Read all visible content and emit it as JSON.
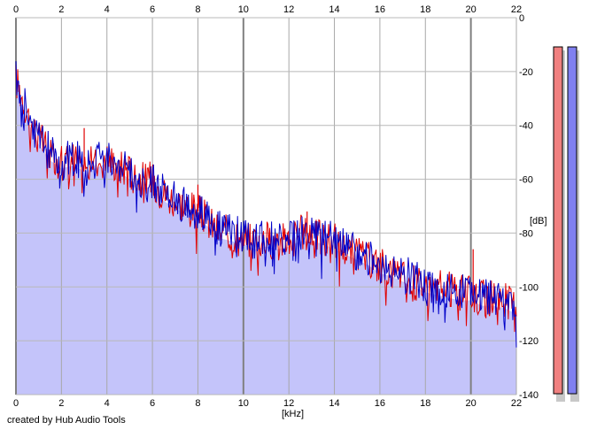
{
  "credit": "created by Hub Audio Tools",
  "chart_data": {
    "type": "line",
    "title": "",
    "xlabel": "[kHz]",
    "ylabel": "[dB]",
    "xlim": [
      0,
      22
    ],
    "ylim": [
      -140,
      0
    ],
    "x_ticks": [
      "0",
      "2",
      "4",
      "6",
      "8",
      "10",
      "12",
      "14",
      "16",
      "18",
      "20",
      "22"
    ],
    "y_ticks": [
      "0",
      "-20",
      "-40",
      "-60",
      "-80",
      "-100",
      "-120",
      "-140"
    ],
    "grid": true,
    "colors": {
      "fill": "#c4c4fa",
      "left_channel": "#e00000",
      "right_channel": "#0000c8",
      "meter_left": "#f08080",
      "meter_right": "#8080f0"
    },
    "series": [
      {
        "color": "#e00000",
        "points": [
          [
            0,
            -23
          ],
          [
            0.3,
            -30
          ],
          [
            0.6,
            -38
          ],
          [
            1,
            -45
          ],
          [
            1.5,
            -50
          ],
          [
            2,
            -54
          ],
          [
            2.5,
            -52
          ],
          [
            3,
            -55
          ],
          [
            3.5,
            -54
          ],
          [
            4,
            -52
          ],
          [
            4.5,
            -55
          ],
          [
            5,
            -57
          ],
          [
            5.5,
            -60
          ],
          [
            6,
            -60
          ],
          [
            6.5,
            -65
          ],
          [
            7,
            -68
          ],
          [
            7.5,
            -70
          ],
          [
            8,
            -72
          ],
          [
            8.5,
            -76
          ],
          [
            9,
            -80
          ],
          [
            9.5,
            -80
          ],
          [
            10,
            -82
          ],
          [
            10.5,
            -83
          ],
          [
            11,
            -82
          ],
          [
            11.5,
            -84
          ],
          [
            12,
            -82
          ],
          [
            12.5,
            -80
          ],
          [
            13,
            -80
          ],
          [
            13.5,
            -82
          ],
          [
            14,
            -83
          ],
          [
            14.5,
            -86
          ],
          [
            15,
            -88
          ],
          [
            15.5,
            -90
          ],
          [
            16,
            -92
          ],
          [
            16.5,
            -94
          ],
          [
            17,
            -96
          ],
          [
            17.5,
            -98
          ],
          [
            18,
            -99
          ],
          [
            18.5,
            -100
          ],
          [
            19,
            -101
          ],
          [
            19.5,
            -102
          ],
          [
            20,
            -103
          ],
          [
            20.5,
            -104
          ],
          [
            21,
            -104
          ],
          [
            21.5,
            -105
          ],
          [
            22,
            -107
          ]
        ]
      },
      {
        "color": "#0000c8",
        "points": [
          [
            0,
            -22
          ],
          [
            0.3,
            -29
          ],
          [
            0.6,
            -37
          ],
          [
            1,
            -44
          ],
          [
            1.5,
            -50
          ],
          [
            2,
            -53
          ],
          [
            2.5,
            -52
          ],
          [
            3,
            -54
          ],
          [
            3.5,
            -53
          ],
          [
            4,
            -51
          ],
          [
            4.5,
            -54
          ],
          [
            5,
            -57
          ],
          [
            5.5,
            -60
          ],
          [
            6,
            -61
          ],
          [
            6.5,
            -65
          ],
          [
            7,
            -68
          ],
          [
            7.5,
            -70
          ],
          [
            8,
            -72
          ],
          [
            8.5,
            -75
          ],
          [
            9,
            -79
          ],
          [
            9.5,
            -80
          ],
          [
            10,
            -81
          ],
          [
            10.5,
            -83
          ],
          [
            11,
            -82
          ],
          [
            11.5,
            -83
          ],
          [
            12,
            -82
          ],
          [
            12.5,
            -80
          ],
          [
            13,
            -80
          ],
          [
            13.5,
            -81
          ],
          [
            14,
            -83
          ],
          [
            14.5,
            -85
          ],
          [
            15,
            -87
          ],
          [
            15.5,
            -89
          ],
          [
            16,
            -92
          ],
          [
            16.5,
            -93
          ],
          [
            17,
            -95
          ],
          [
            17.5,
            -97
          ],
          [
            18,
            -99
          ],
          [
            18.5,
            -100
          ],
          [
            19,
            -101
          ],
          [
            19.5,
            -102
          ],
          [
            20,
            -102
          ],
          [
            20.5,
            -104
          ],
          [
            21,
            -104
          ],
          [
            21.5,
            -106
          ],
          [
            22,
            -108
          ]
        ]
      }
    ],
    "fill_envelope": [
      [
        0,
        -22
      ],
      [
        0.3,
        -29
      ],
      [
        0.6,
        -37
      ],
      [
        1,
        -44
      ],
      [
        1.5,
        -50
      ],
      [
        2,
        -53
      ],
      [
        2.5,
        -52
      ],
      [
        3,
        -54
      ],
      [
        3.5,
        -53
      ],
      [
        4,
        -51
      ],
      [
        4.5,
        -54
      ],
      [
        5,
        -57
      ],
      [
        5.5,
        -60
      ],
      [
        6,
        -60
      ],
      [
        6.5,
        -65
      ],
      [
        7,
        -68
      ],
      [
        7.5,
        -70
      ],
      [
        8,
        -72
      ],
      [
        8.5,
        -75
      ],
      [
        9,
        -79
      ],
      [
        9.5,
        -80
      ],
      [
        10,
        -81
      ],
      [
        10.5,
        -83
      ],
      [
        11,
        -82
      ],
      [
        11.5,
        -83
      ],
      [
        12,
        -82
      ],
      [
        12.5,
        -80
      ],
      [
        13,
        -80
      ],
      [
        13.5,
        -81
      ],
      [
        14,
        -83
      ],
      [
        14.5,
        -85
      ],
      [
        15,
        -87
      ],
      [
        15.5,
        -89
      ],
      [
        16,
        -92
      ],
      [
        16.5,
        -93
      ],
      [
        17,
        -95
      ],
      [
        17.5,
        -97
      ],
      [
        18,
        -99
      ],
      [
        18.5,
        -100
      ],
      [
        19,
        -101
      ],
      [
        19.5,
        -102
      ],
      [
        20,
        -102
      ],
      [
        20.5,
        -104
      ],
      [
        21,
        -104
      ],
      [
        21.5,
        -105
      ],
      [
        22,
        -107
      ]
    ],
    "spikes": [
      [
        3,
        -41
      ],
      [
        8,
        -62
      ],
      [
        12.8,
        -72
      ],
      [
        20.1,
        -86
      ]
    ],
    "level_meters": [
      {
        "channel": "left",
        "level_db": 0
      },
      {
        "channel": "right",
        "level_db": 0
      }
    ]
  }
}
